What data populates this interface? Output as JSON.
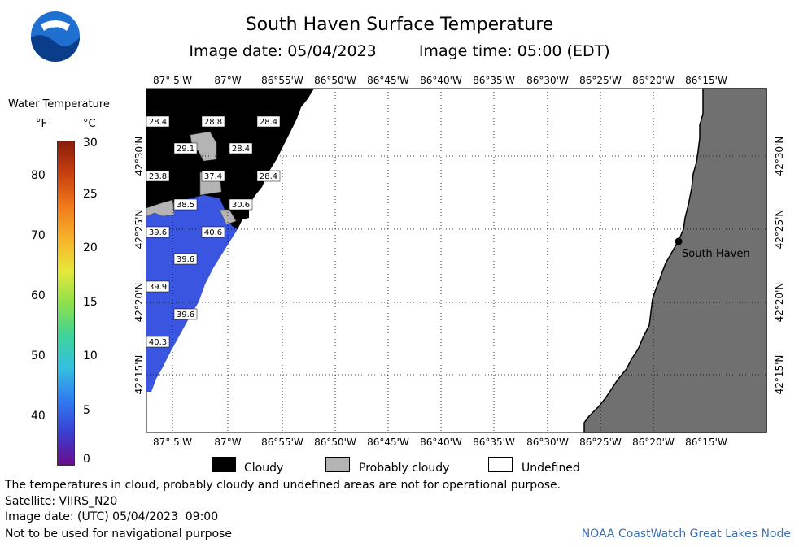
{
  "header": {
    "logo": "NOAA",
    "title": "South Haven Surface Temperature",
    "image_date": "Image date: 05/04/2023",
    "image_time": "Image time: 05:00 (EDT)"
  },
  "colorbar": {
    "title": "Water Temperature",
    "unit_f": "°F",
    "unit_c": "°C",
    "f_ticks": [
      "80",
      "70",
      "60",
      "50",
      "40"
    ],
    "c_ticks": [
      "30",
      "25",
      "20",
      "15",
      "10",
      "5",
      "0"
    ],
    "colors": [
      "#6a0d8c",
      "#3a3fd0",
      "#2f7bf0",
      "#34c0e0",
      "#3ed39a",
      "#8fe04a",
      "#e6e83a",
      "#f7b22a",
      "#f07a1a",
      "#c84010",
      "#8a1c0c"
    ]
  },
  "map": {
    "lon_labels": [
      "87° 5'W",
      "87°W",
      "86°55'W",
      "86°50'W",
      "86°45'W",
      "86°40'W",
      "86°35'W",
      "86°30'W",
      "86°25'W",
      "86°20'W",
      "86°15'W"
    ],
    "lat_labels": [
      "42°30'N",
      "42°25'N",
      "42°20'N",
      "42°15'N"
    ],
    "place_label": "South Haven",
    "temp_labels": [
      "28.4",
      "28.8",
      "28.4",
      "29.1",
      "28.4",
      "23.8",
      "37.4",
      "28.4",
      "38.5",
      "30.6",
      "39.6",
      "40.6",
      "39.6",
      "39.9",
      "39.6",
      "40.3"
    ],
    "colors": {
      "cloud": "#000000",
      "probably_cloudy": "#b4b4b4",
      "land": "#707070",
      "water_cold": "#3a55e0"
    }
  },
  "legend": {
    "cloudy": "Cloudy",
    "probably_cloudy": "Probably cloudy",
    "undefined": "Undefined"
  },
  "footer": {
    "disclaimer": "The temperatures in cloud, probably cloudy and undefined areas are not for operational purpose.",
    "satellite": "Satellite: VIIRS_N20",
    "utc_date": "Image date: (UTC) 05/04/2023  09:00",
    "nav_warning": "Not to be used for navigational purpose",
    "credit": "NOAA CoastWatch Great Lakes Node"
  }
}
